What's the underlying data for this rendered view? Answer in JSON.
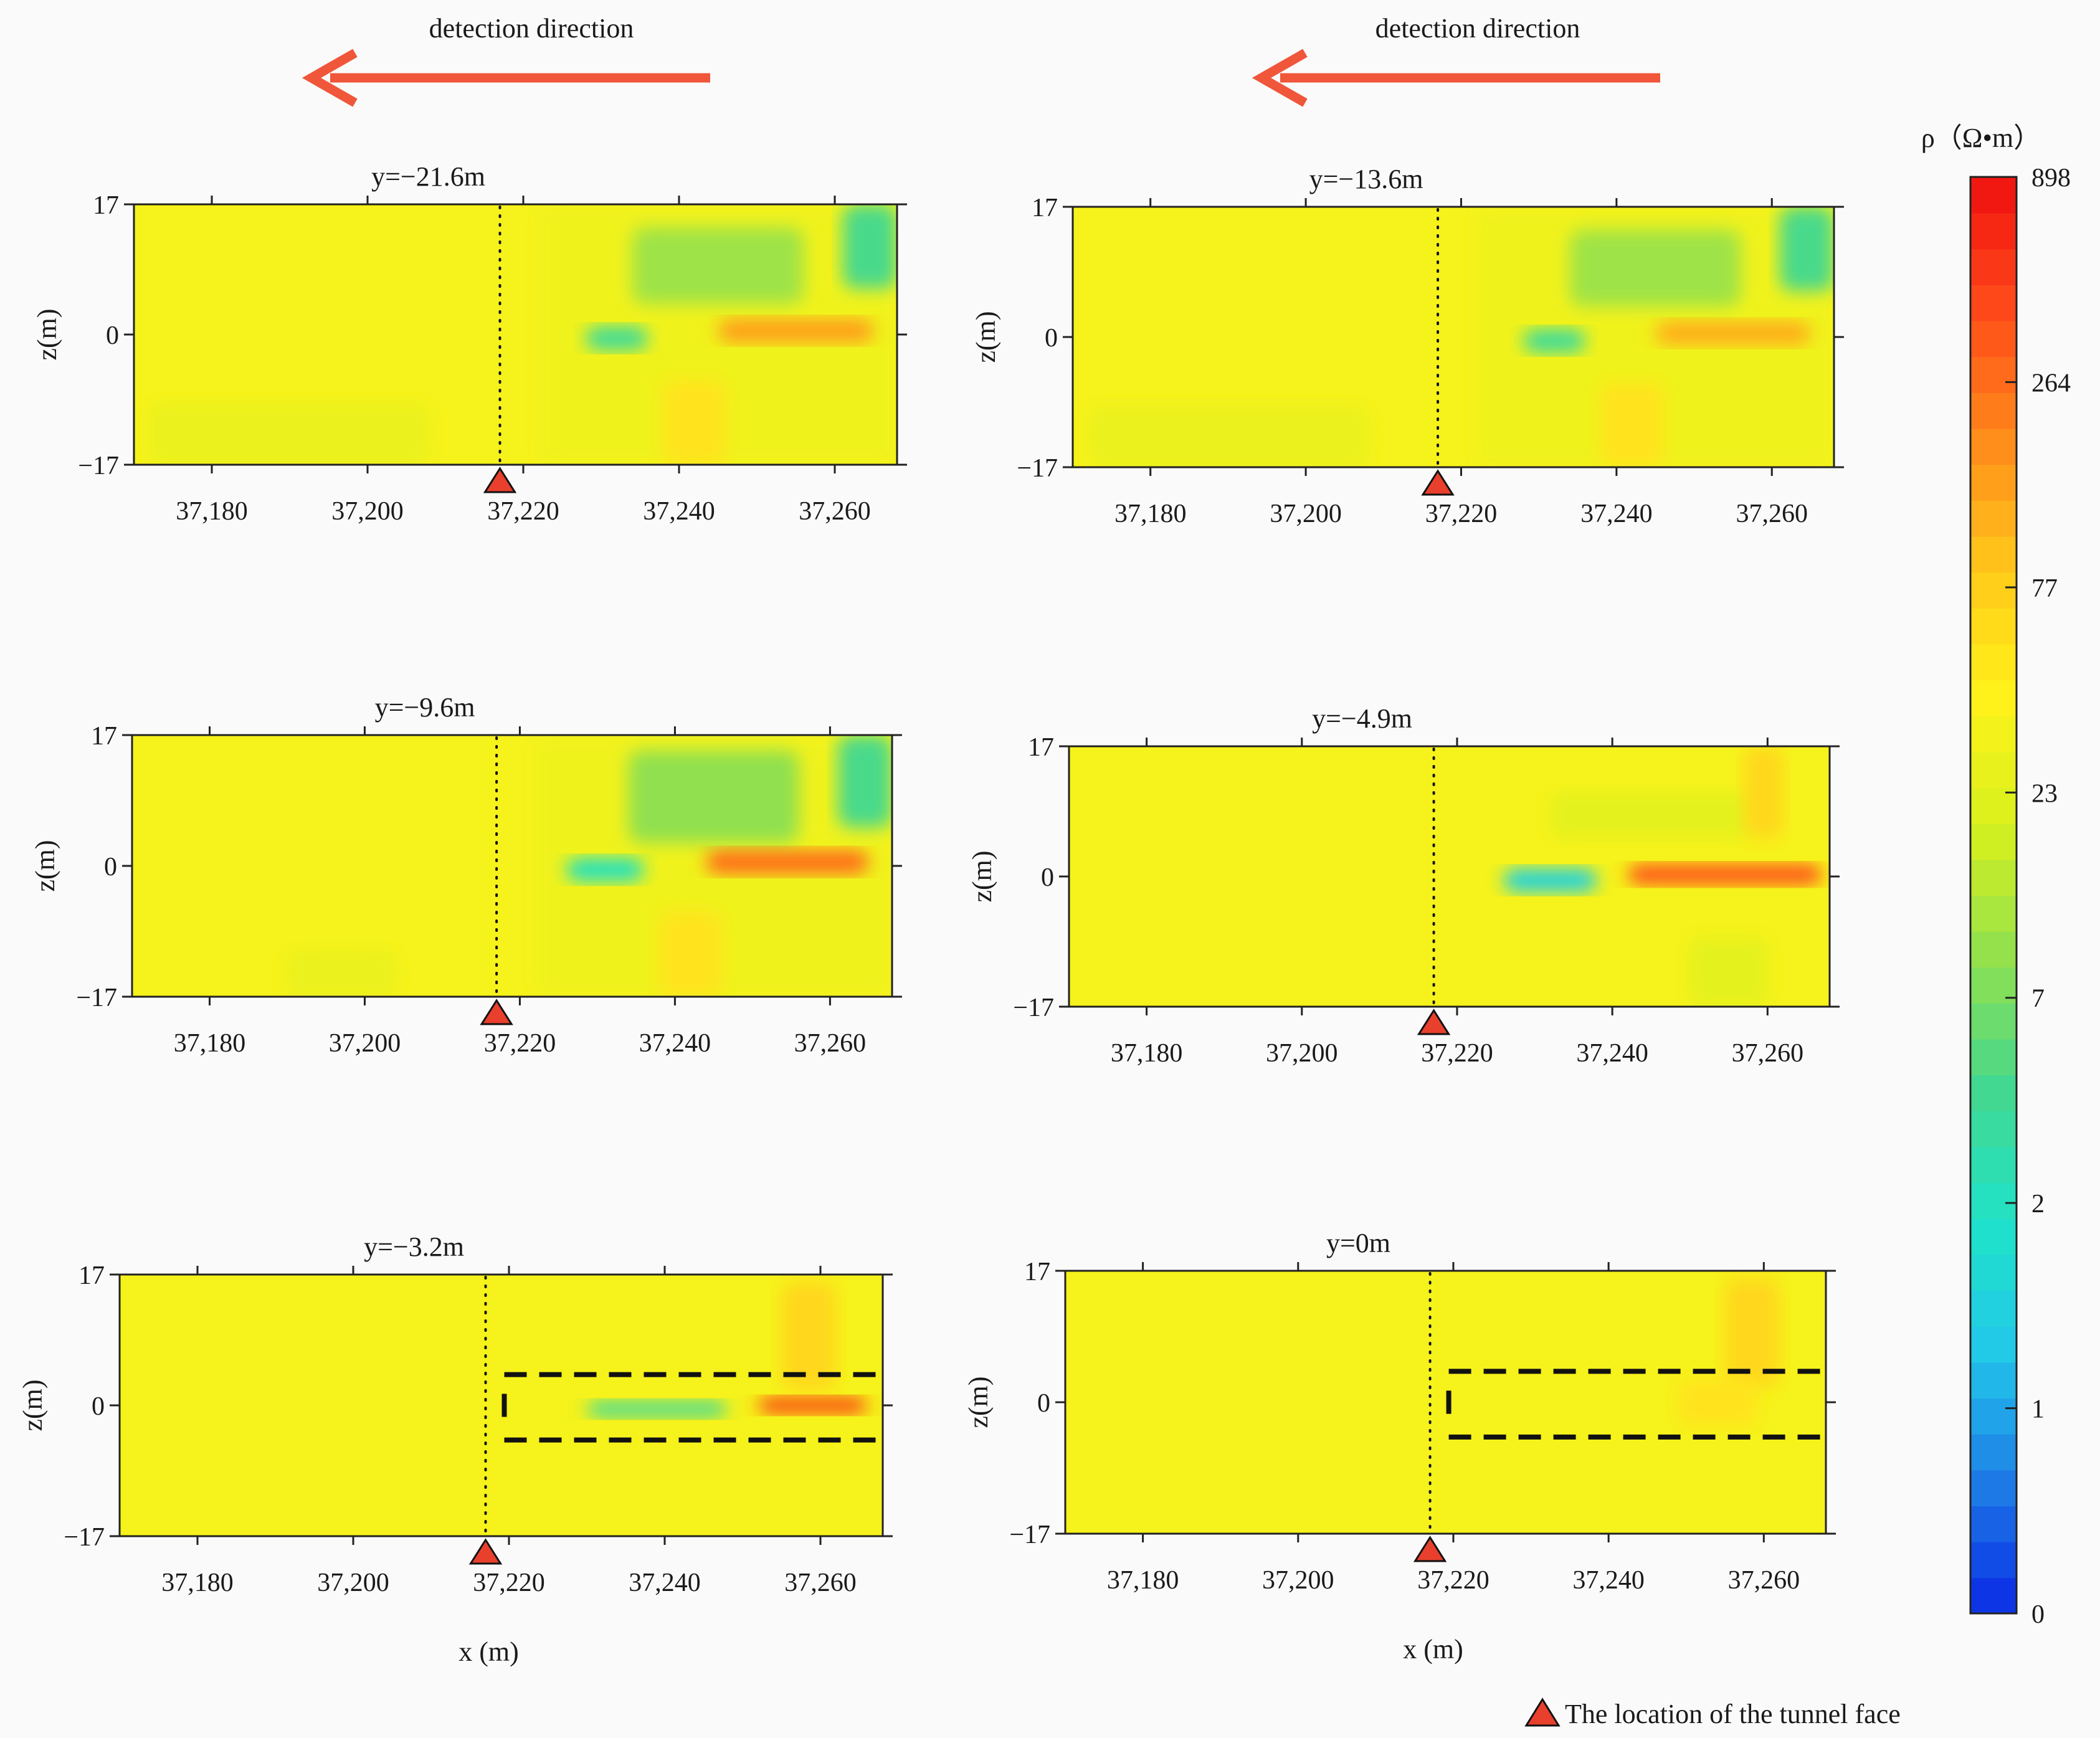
{
  "header": {
    "direction_label_left": "detection direction",
    "direction_label_right": "detection direction"
  },
  "colors": {
    "arrow": "#f0563a",
    "marker": "#e8402c",
    "background": "#fafafa",
    "dashed_outline": "#111111",
    "colorbar_stops": [
      "#0a2ae6",
      "#1e7ce6",
      "#22c8ea",
      "#1fe3c8",
      "#43d890",
      "#8fe050",
      "#d6f01e",
      "#fff31a",
      "#ffc81a",
      "#ff8a1a",
      "#ff4a1a",
      "#ef1010"
    ]
  },
  "chart_data": [
    {
      "type": "heatmap",
      "title": "y=−21.6m",
      "xlabel": "",
      "ylabel": "z(m)",
      "xlim": [
        37170,
        37268
      ],
      "ylim": [
        -17,
        17
      ],
      "xticks": [
        "37,180",
        "37,200",
        "37,220",
        "37,240",
        "37,260"
      ],
      "yticks": [
        "17",
        "0",
        "−17"
      ],
      "tunnel_face_x": 37217,
      "tunnel_outline": false,
      "features": [
        {
          "x": [
            37170,
            37268
          ],
          "z": [
            -17,
            17
          ],
          "rho": 40
        },
        {
          "x": [
            37222,
            37268
          ],
          "z": [
            -17,
            17
          ],
          "rho": 35
        },
        {
          "x": [
            37172,
            37208
          ],
          "z": [
            -17,
            -9
          ],
          "rho": 30
        },
        {
          "x": [
            37234,
            37256
          ],
          "z": [
            4,
            14
          ],
          "rho": 12
        },
        {
          "x": [
            37261,
            37268
          ],
          "z": [
            6,
            17
          ],
          "rho": 5
        },
        {
          "x": [
            37228,
            37236
          ],
          "z": [
            -2,
            1
          ],
          "rho": 4
        },
        {
          "x": [
            37245,
            37265
          ],
          "z": [
            -1,
            2
          ],
          "rho": 180
        },
        {
          "x": [
            37238,
            37246
          ],
          "z": [
            -17,
            -6
          ],
          "rho": 60
        }
      ]
    },
    {
      "type": "heatmap",
      "title": "y=−13.6m",
      "xlabel": "",
      "ylabel": "z(m)",
      "xlim": [
        37170,
        37268
      ],
      "ylim": [
        -17,
        17
      ],
      "xticks": [
        "37,180",
        "37,200",
        "37,220",
        "37,240",
        "37,260"
      ],
      "yticks": [
        "17",
        "0",
        "−17"
      ],
      "tunnel_face_x": 37217,
      "tunnel_outline": false,
      "features": [
        {
          "x": [
            37170,
            37268
          ],
          "z": [
            -17,
            17
          ],
          "rho": 40
        },
        {
          "x": [
            37222,
            37268
          ],
          "z": [
            -17,
            17
          ],
          "rho": 35
        },
        {
          "x": [
            37172,
            37208
          ],
          "z": [
            -17,
            -9
          ],
          "rho": 30
        },
        {
          "x": [
            37234,
            37256
          ],
          "z": [
            4,
            14
          ],
          "rho": 12
        },
        {
          "x": [
            37261,
            37268
          ],
          "z": [
            6,
            17
          ],
          "rho": 5
        },
        {
          "x": [
            37228,
            37236
          ],
          "z": [
            -2,
            1
          ],
          "rho": 4
        },
        {
          "x": [
            37245,
            37265
          ],
          "z": [
            -1,
            2
          ],
          "rho": 150
        },
        {
          "x": [
            37238,
            37246
          ],
          "z": [
            -17,
            -6
          ],
          "rho": 60
        }
      ]
    },
    {
      "type": "heatmap",
      "title": "y=−9.6m",
      "xlabel": "",
      "ylabel": "z(m)",
      "xlim": [
        37170,
        37268
      ],
      "ylim": [
        -17,
        17
      ],
      "xticks": [
        "37,180",
        "37,200",
        "37,220",
        "37,240",
        "37,260"
      ],
      "yticks": [
        "17",
        "0",
        "−17"
      ],
      "tunnel_face_x": 37217,
      "tunnel_outline": false,
      "features": [
        {
          "x": [
            37170,
            37268
          ],
          "z": [
            -17,
            17
          ],
          "rho": 40
        },
        {
          "x": [
            37222,
            37268
          ],
          "z": [
            -17,
            17
          ],
          "rho": 35
        },
        {
          "x": [
            37190,
            37204
          ],
          "z": [
            -17,
            -11
          ],
          "rho": 30
        },
        {
          "x": [
            37234,
            37256
          ],
          "z": [
            3,
            15
          ],
          "rho": 10
        },
        {
          "x": [
            37261,
            37268
          ],
          "z": [
            5,
            17
          ],
          "rho": 5
        },
        {
          "x": [
            37226,
            37236
          ],
          "z": [
            -2,
            1
          ],
          "rho": 2
        },
        {
          "x": [
            37244,
            37265
          ],
          "z": [
            -1,
            2
          ],
          "rho": 300
        },
        {
          "x": [
            37238,
            37246
          ],
          "z": [
            -17,
            -6
          ],
          "rho": 60
        }
      ]
    },
    {
      "type": "heatmap",
      "title": "y=−4.9m",
      "xlabel": "",
      "ylabel": "z(m)",
      "xlim": [
        37170,
        37268
      ],
      "ylim": [
        -17,
        17
      ],
      "xticks": [
        "37,180",
        "37,200",
        "37,220",
        "37,240",
        "37,260"
      ],
      "yticks": [
        "17",
        "0",
        "−17"
      ],
      "tunnel_face_x": 37217,
      "tunnel_outline": false,
      "features": [
        {
          "x": [
            37170,
            37268
          ],
          "z": [
            -17,
            17
          ],
          "rho": 40
        },
        {
          "x": [
            37232,
            37258
          ],
          "z": [
            5,
            11
          ],
          "rho": 25
        },
        {
          "x": [
            37226,
            37238
          ],
          "z": [
            -2,
            1
          ],
          "rho": 1.5
        },
        {
          "x": [
            37242,
            37267
          ],
          "z": [
            -1,
            1.5
          ],
          "rho": 500
        },
        {
          "x": [
            37250,
            37260
          ],
          "z": [
            -17,
            -8
          ],
          "rho": 25
        },
        {
          "x": [
            37257,
            37262
          ],
          "z": [
            5,
            17
          ],
          "rho": 70
        }
      ]
    },
    {
      "type": "heatmap",
      "title": "y=−3.2m",
      "xlabel": "x (m)",
      "ylabel": "z(m)",
      "xlim": [
        37170,
        37268
      ],
      "ylim": [
        -17,
        17
      ],
      "xticks": [
        "37,180",
        "37,200",
        "37,220",
        "37,240",
        "37,260"
      ],
      "yticks": [
        "17",
        "0",
        "−17"
      ],
      "tunnel_face_x": 37217,
      "tunnel_outline": true,
      "features": [
        {
          "x": [
            37170,
            37268
          ],
          "z": [
            -17,
            17
          ],
          "rho": 40
        },
        {
          "x": [
            37255,
            37262
          ],
          "z": [
            2,
            16
          ],
          "rho": 70
        },
        {
          "x": [
            37230,
            37248
          ],
          "z": [
            -1.5,
            0.5
          ],
          "rho": 4
        },
        {
          "x": [
            37252,
            37266
          ],
          "z": [
            -1,
            1
          ],
          "rho": 600
        }
      ]
    },
    {
      "type": "heatmap",
      "title": "y=0m",
      "xlabel": "x (m)",
      "ylabel": "z(m)",
      "xlim": [
        37170,
        37268
      ],
      "ylim": [
        -17,
        17
      ],
      "xticks": [
        "37,180",
        "37,200",
        "37,220",
        "37,240",
        "37,260"
      ],
      "yticks": [
        "17",
        "0",
        "−17"
      ],
      "tunnel_face_x": 37217,
      "tunnel_outline": true,
      "features": [
        {
          "x": [
            37170,
            37268
          ],
          "z": [
            -17,
            17
          ],
          "rho": 40
        },
        {
          "x": [
            37255,
            37262
          ],
          "z": [
            2,
            16
          ],
          "rho": 70
        },
        {
          "x": [
            37249,
            37259
          ],
          "z": [
            -3,
            3
          ],
          "rho": 60
        }
      ]
    }
  ],
  "colorbar": {
    "title": "ρ（Ω•m）",
    "tick_values": [
      "898",
      "264",
      "77",
      "23",
      "7",
      "2",
      "1",
      "0"
    ]
  },
  "legend": {
    "label": "The location of the tunnel face"
  }
}
